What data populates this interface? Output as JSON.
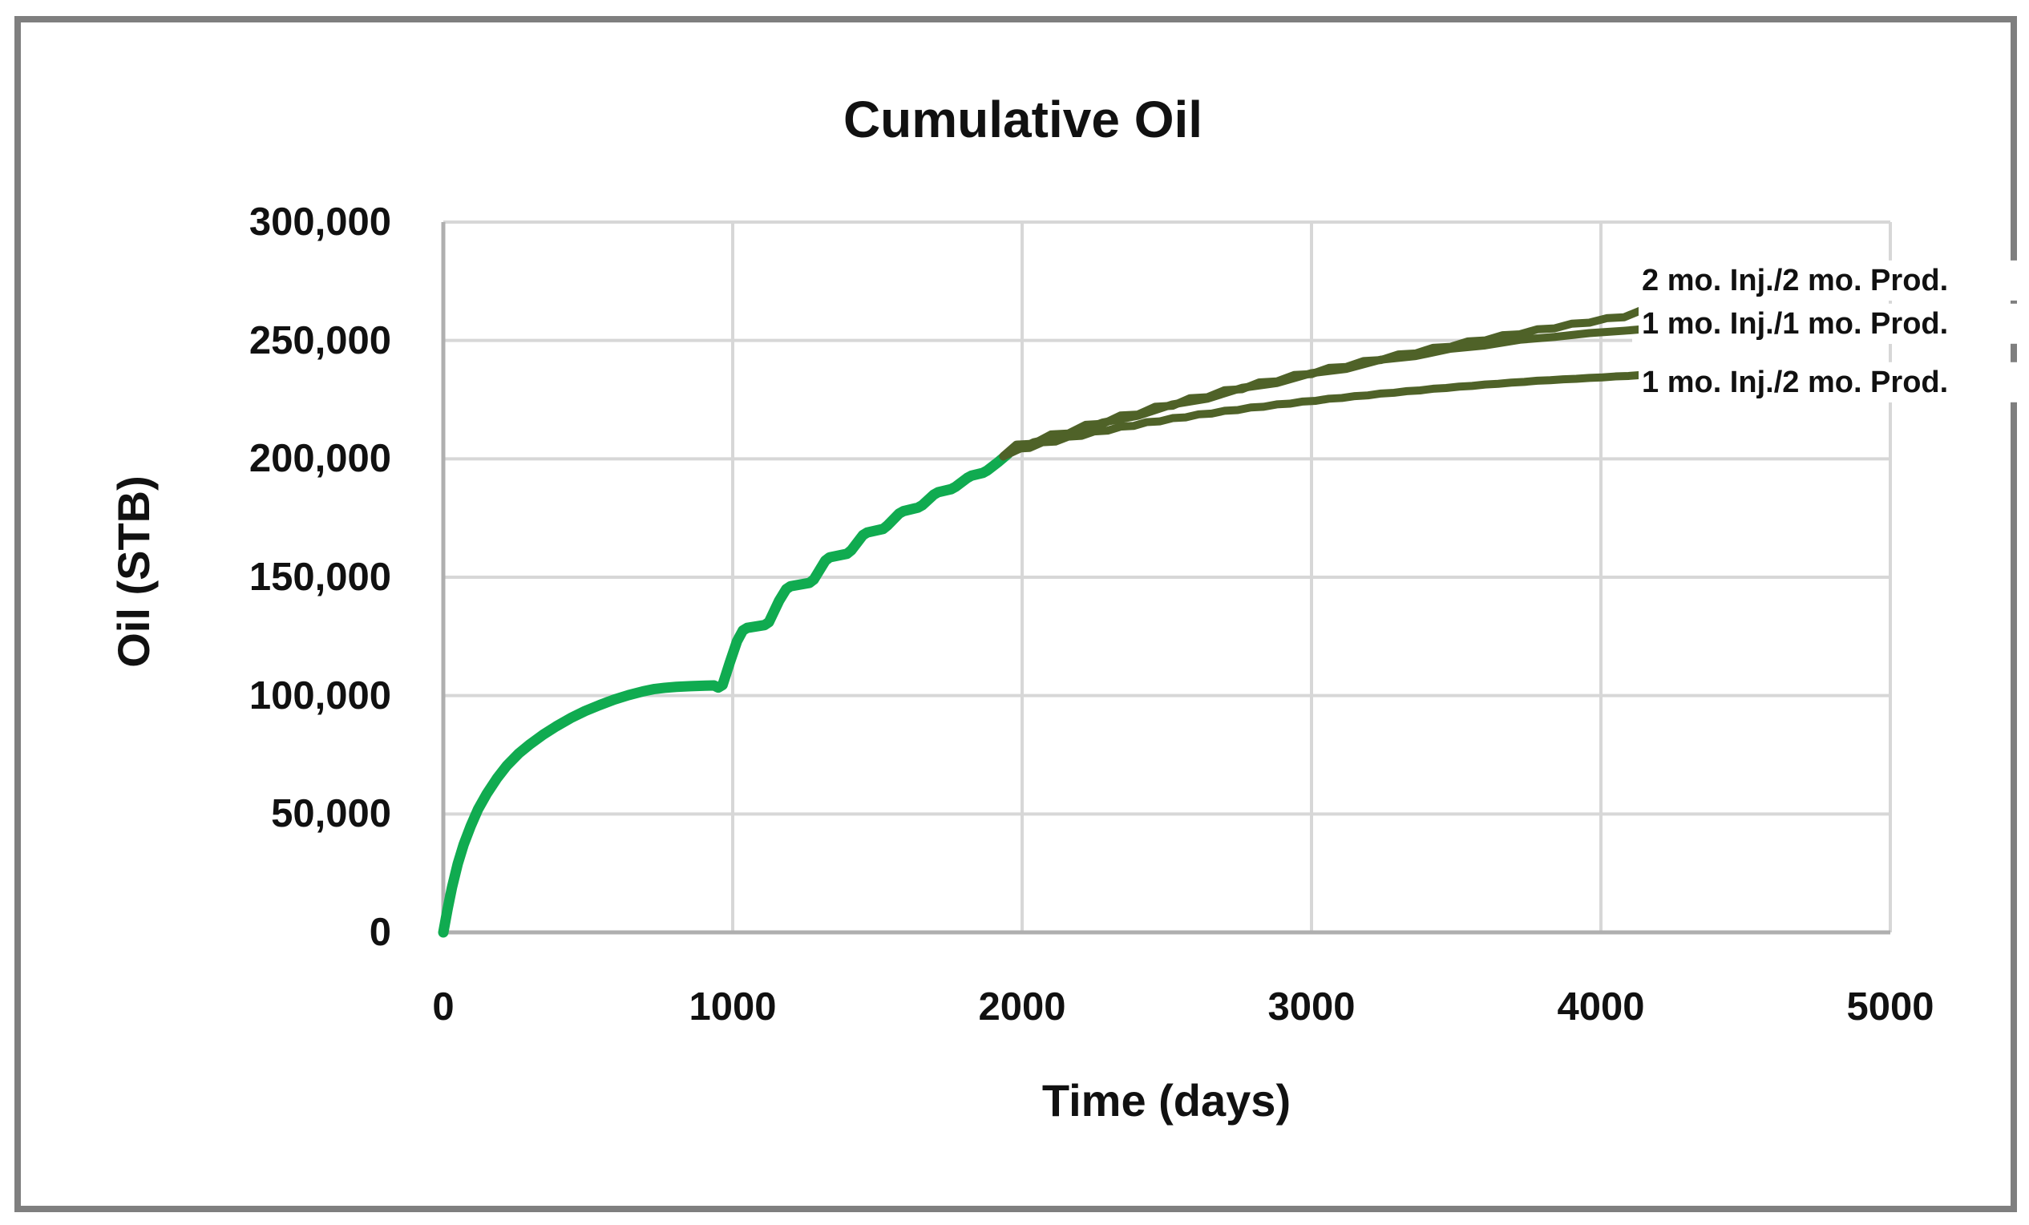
{
  "title": "Cumulative Oil",
  "colors": {
    "history_green": "#10AB50",
    "forecast_olive": "#4F6228",
    "gridline": "#D7D7D7",
    "axis_line": "#AFAFAF",
    "frame_border": "#7F7F7F",
    "text": "#111111",
    "background": "#FFFFFF"
  },
  "chart_data": {
    "type": "line",
    "title": "Cumulative Oil",
    "xlabel": "Time (days)",
    "ylabel": "Oil (STB)",
    "xlim": [
      0,
      5000
    ],
    "ylim": [
      0,
      300000
    ],
    "grid": true,
    "x_ticks": [
      0,
      1000,
      2000,
      3000,
      4000,
      5000
    ],
    "x_tick_labels": [
      "0",
      "1000",
      "2000",
      "3000",
      "4000",
      "5000"
    ],
    "y_ticks": [
      0,
      50000,
      100000,
      150000,
      200000,
      250000,
      300000
    ],
    "y_tick_labels": [
      "0",
      "50,000",
      "100,000",
      "150,000",
      "200,000",
      "250,000",
      "300,000"
    ],
    "legend_position": "right-end-labels",
    "series": [
      {
        "name": "history",
        "end_label": null,
        "color": "#10AB50",
        "stroke_width": 13,
        "points": [
          [
            0,
            0
          ],
          [
            15,
            10000
          ],
          [
            30,
            19000
          ],
          [
            50,
            29000
          ],
          [
            70,
            37000
          ],
          [
            95,
            45000
          ],
          [
            120,
            52000
          ],
          [
            150,
            58500
          ],
          [
            185,
            65000
          ],
          [
            220,
            70500
          ],
          [
            260,
            75500
          ],
          [
            300,
            79500
          ],
          [
            345,
            83500
          ],
          [
            390,
            87000
          ],
          [
            440,
            90500
          ],
          [
            490,
            93500
          ],
          [
            540,
            96000
          ],
          [
            590,
            98300
          ],
          [
            640,
            100200
          ],
          [
            690,
            101800
          ],
          [
            730,
            102800
          ],
          [
            765,
            103300
          ],
          [
            805,
            103700
          ],
          [
            855,
            104000
          ],
          [
            905,
            104200
          ],
          [
            935,
            104300
          ],
          [
            950,
            103400
          ],
          [
            965,
            104500
          ],
          [
            990,
            114000
          ],
          [
            1015,
            123000
          ],
          [
            1035,
            127500
          ],
          [
            1050,
            128600
          ],
          [
            1110,
            129800
          ],
          [
            1125,
            131000
          ],
          [
            1160,
            140000
          ],
          [
            1185,
            145000
          ],
          [
            1200,
            146200
          ],
          [
            1265,
            147600
          ],
          [
            1280,
            149000
          ],
          [
            1320,
            157000
          ],
          [
            1335,
            158400
          ],
          [
            1395,
            159900
          ],
          [
            1410,
            161400
          ],
          [
            1450,
            167800
          ],
          [
            1465,
            168900
          ],
          [
            1520,
            170400
          ],
          [
            1535,
            171900
          ],
          [
            1575,
            176900
          ],
          [
            1590,
            177900
          ],
          [
            1640,
            179400
          ],
          [
            1655,
            180400
          ],
          [
            1695,
            184900
          ],
          [
            1710,
            185900
          ],
          [
            1755,
            187200
          ],
          [
            1770,
            188200
          ],
          [
            1810,
            191900
          ],
          [
            1825,
            192900
          ],
          [
            1865,
            194100
          ],
          [
            1880,
            195100
          ],
          [
            1920,
            198900
          ],
          [
            1950,
            202000
          ]
        ]
      },
      {
        "name": "2mo-inj-2mo-prod",
        "end_label": "2 mo. Inj./2 mo. Prod.",
        "color": "#4F6228",
        "stroke_width": 10,
        "points": [
          [
            1935,
            201200
          ],
          [
            1980,
            206000
          ],
          [
            2040,
            206400
          ],
          [
            2100,
            210300
          ],
          [
            2160,
            210700
          ],
          [
            2220,
            214400
          ],
          [
            2280,
            214800
          ],
          [
            2340,
            218300
          ],
          [
            2400,
            218700
          ],
          [
            2460,
            222000
          ],
          [
            2520,
            222400
          ],
          [
            2580,
            225600
          ],
          [
            2640,
            226000
          ],
          [
            2700,
            229000
          ],
          [
            2760,
            229400
          ],
          [
            2820,
            232300
          ],
          [
            2880,
            232700
          ],
          [
            2940,
            235400
          ],
          [
            3000,
            235800
          ],
          [
            3060,
            238400
          ],
          [
            3120,
            238800
          ],
          [
            3180,
            241300
          ],
          [
            3240,
            241700
          ],
          [
            3300,
            244100
          ],
          [
            3360,
            244500
          ],
          [
            3420,
            246900
          ],
          [
            3480,
            247300
          ],
          [
            3540,
            249600
          ],
          [
            3600,
            250000
          ],
          [
            3660,
            252200
          ],
          [
            3720,
            252600
          ],
          [
            3780,
            254700
          ],
          [
            3840,
            255100
          ],
          [
            3900,
            257100
          ],
          [
            3960,
            257500
          ],
          [
            4020,
            259400
          ],
          [
            4080,
            259800
          ],
          [
            4140,
            262800
          ]
        ]
      },
      {
        "name": "1mo-inj-1mo-prod",
        "end_label": "1 mo. Inj./1 mo. Prod.",
        "color": "#4F6228",
        "stroke_width": 10,
        "points": [
          [
            1935,
            201000
          ],
          [
            2040,
            207000
          ],
          [
            2160,
            210200
          ],
          [
            2280,
            215400
          ],
          [
            2400,
            218200
          ],
          [
            2520,
            223000
          ],
          [
            2640,
            225400
          ],
          [
            2760,
            230000
          ],
          [
            2880,
            232000
          ],
          [
            3000,
            236200
          ],
          [
            3120,
            238000
          ],
          [
            3240,
            241900
          ],
          [
            3360,
            243400
          ],
          [
            3480,
            246500
          ],
          [
            3600,
            247900
          ],
          [
            3720,
            250300
          ],
          [
            3840,
            251500
          ],
          [
            3960,
            253100
          ],
          [
            4080,
            254100
          ],
          [
            4140,
            254700
          ]
        ]
      },
      {
        "name": "1mo-inj-2mo-prod",
        "end_label": "1 mo. Inj./2 mo. Prod.",
        "color": "#4F6228",
        "stroke_width": 10,
        "points": [
          [
            1935,
            201000
          ],
          [
            1980,
            204300
          ],
          [
            2025,
            204600
          ],
          [
            2070,
            207000
          ],
          [
            2115,
            207300
          ],
          [
            2160,
            209400
          ],
          [
            2205,
            209700
          ],
          [
            2250,
            211600
          ],
          [
            2295,
            211900
          ],
          [
            2340,
            213600
          ],
          [
            2385,
            213900
          ],
          [
            2430,
            215500
          ],
          [
            2475,
            215800
          ],
          [
            2520,
            217200
          ],
          [
            2565,
            217500
          ],
          [
            2610,
            218800
          ],
          [
            2655,
            219100
          ],
          [
            2700,
            220300
          ],
          [
            2745,
            220600
          ],
          [
            2790,
            221700
          ],
          [
            2835,
            222000
          ],
          [
            2880,
            223000
          ],
          [
            2925,
            223300
          ],
          [
            2970,
            224200
          ],
          [
            3015,
            224500
          ],
          [
            3060,
            225400
          ],
          [
            3105,
            225700
          ],
          [
            3150,
            226500
          ],
          [
            3195,
            226800
          ],
          [
            3240,
            227600
          ],
          [
            3285,
            227900
          ],
          [
            3330,
            228600
          ],
          [
            3375,
            228900
          ],
          [
            3420,
            229600
          ],
          [
            3465,
            229900
          ],
          [
            3510,
            230500
          ],
          [
            3555,
            230800
          ],
          [
            3600,
            231400
          ],
          [
            3645,
            231700
          ],
          [
            3690,
            232200
          ],
          [
            3735,
            232500
          ],
          [
            3780,
            233000
          ],
          [
            3825,
            233200
          ],
          [
            3870,
            233600
          ],
          [
            3915,
            233800
          ],
          [
            3960,
            234200
          ],
          [
            4005,
            234400
          ],
          [
            4050,
            234800
          ],
          [
            4095,
            235000
          ],
          [
            4140,
            235400
          ]
        ]
      }
    ]
  }
}
